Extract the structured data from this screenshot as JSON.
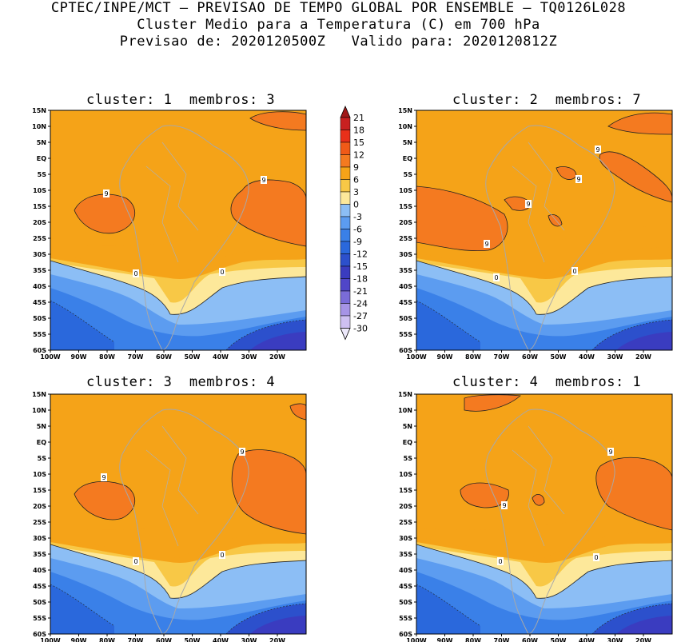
{
  "header": {
    "line1": "CPTEC/INPE/MCT — PREVISAO DE TEMPO GLOBAL POR ENSEMBLE — TQ0126L028",
    "line2": "Cluster Medio para a Temperatura (C) em 700 hPa",
    "line3": "Previsao de: 2020120500Z   Valido para: 2020120812Z"
  },
  "panels": [
    {
      "title": "cluster: 1  membros: 3",
      "labels": [
        "9",
        "9",
        "0",
        "0"
      ]
    },
    {
      "title": "cluster: 2  membros: 7",
      "labels": [
        "9",
        "9",
        "9",
        "9",
        "0",
        "0"
      ]
    },
    {
      "title": "cluster: 3  membros: 4",
      "labels": [
        "9",
        "9",
        "0",
        "0"
      ]
    },
    {
      "title": "cluster: 4  membros: 1",
      "labels": [
        "9",
        "9",
        "0",
        "0"
      ]
    }
  ],
  "lat_ticks": [
    "15N",
    "10N",
    "5N",
    "EQ",
    "5S",
    "10S",
    "15S",
    "20S",
    "25S",
    "30S",
    "35S",
    "40S",
    "45S",
    "50S",
    "55S",
    "60S"
  ],
  "lon_ticks": [
    "100W",
    "90W",
    "80W",
    "70W",
    "60W",
    "50W",
    "40W",
    "30W",
    "20W"
  ],
  "colorbar": {
    "labels": [
      "21",
      "18",
      "15",
      "12",
      "9",
      "6",
      "3",
      "0",
      "-3",
      "-6",
      "-9",
      "-12",
      "-15",
      "-18",
      "-21",
      "-24",
      "-27",
      "-30"
    ],
    "colors": [
      "#a01818",
      "#c82020",
      "#e8301a",
      "#f05a18",
      "#f47a20",
      "#f5a318",
      "#f8c846",
      "#fde89a",
      "#8cbef5",
      "#5c9cf0",
      "#3a80e8",
      "#2a68dc",
      "#2c50cc",
      "#3a3cc0",
      "#5046c8",
      "#7a6cd8",
      "#a694e6",
      "#cec0f2",
      "#ece8fa"
    ]
  }
}
